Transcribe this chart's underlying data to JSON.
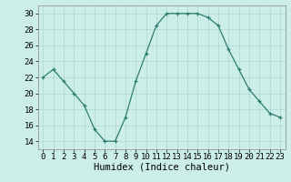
{
  "x": [
    0,
    1,
    2,
    3,
    4,
    5,
    6,
    7,
    8,
    9,
    10,
    11,
    12,
    13,
    14,
    15,
    16,
    17,
    18,
    19,
    20,
    21,
    22,
    23
  ],
  "y": [
    22,
    23,
    21.5,
    20,
    18.5,
    15.5,
    14,
    14,
    17,
    21.5,
    25,
    28.5,
    30,
    30,
    30,
    30,
    29.5,
    28.5,
    25.5,
    23,
    20.5,
    19,
    17.5,
    17
  ],
  "line_color": "#2e7d6e",
  "marker": "+",
  "background_color": "#cceee8",
  "grid_color": "#aad8d0",
  "xlabel": "Humidex (Indice chaleur)",
  "ylim": [
    13,
    31
  ],
  "xlim": [
    -0.5,
    23.5
  ],
  "yticks": [
    14,
    16,
    18,
    20,
    22,
    24,
    26,
    28,
    30
  ],
  "xticks": [
    0,
    1,
    2,
    3,
    4,
    5,
    6,
    7,
    8,
    9,
    10,
    11,
    12,
    13,
    14,
    15,
    16,
    17,
    18,
    19,
    20,
    21,
    22,
    23
  ],
  "tick_labelsize": 6.5,
  "xlabel_fontsize": 7.5
}
